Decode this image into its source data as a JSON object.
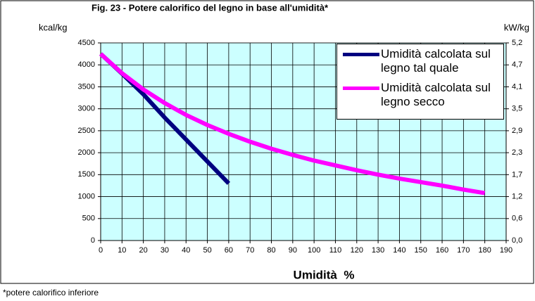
{
  "chart_data": {
    "type": "line",
    "title": "Fig. 23 - Potere calorifico del legno in base all'umidità*",
    "ylabel": "kcal/kg",
    "y2label": "kW/kg",
    "xlabel": "Umidità  %",
    "footnote": "*potere calorifico inferiore",
    "xlim": [
      0,
      190
    ],
    "xticks": [
      0,
      10,
      20,
      30,
      40,
      50,
      60,
      70,
      80,
      90,
      100,
      110,
      120,
      130,
      140,
      150,
      160,
      170,
      180,
      190
    ],
    "ylim": [
      0,
      4500
    ],
    "yticks": [
      0,
      500,
      1000,
      1500,
      2000,
      2500,
      3000,
      3500,
      4000,
      4500
    ],
    "y2lim": [
      0,
      5.233
    ],
    "y2ticks": [
      {
        "value": 0,
        "label": "0,0"
      },
      {
        "value": 0.581,
        "label": "0,6"
      },
      {
        "value": 1.163,
        "label": "1,2"
      },
      {
        "value": 1.744,
        "label": "1,7"
      },
      {
        "value": 2.326,
        "label": "2,3"
      },
      {
        "value": 2.907,
        "label": "2,9"
      },
      {
        "value": 3.488,
        "label": "3,5"
      },
      {
        "value": 4.07,
        "label": "4,1"
      },
      {
        "value": 4.651,
        "label": "4,7"
      },
      {
        "value": 5.233,
        "label": "5,2"
      }
    ],
    "grid": true,
    "background": "#ccffff",
    "legend": "top-right",
    "series": [
      {
        "name": "Umidità calcolata sul legno tal quale",
        "color": "#000080",
        "x": [
          0,
          10,
          20,
          30,
          40,
          50,
          60
        ],
        "values": [
          4250,
          3800,
          3330,
          2800,
          2300,
          1800,
          1300
        ]
      },
      {
        "name": "Umidità calcolata sul legno secco",
        "color": "#ff00ff",
        "x": [
          0,
          10,
          20,
          30,
          40,
          50,
          60,
          70,
          80,
          90,
          100,
          110,
          120,
          130,
          140,
          150,
          160,
          170,
          180
        ],
        "values": [
          4250,
          3810,
          3440,
          3130,
          2860,
          2630,
          2430,
          2250,
          2090,
          1950,
          1820,
          1710,
          1600,
          1500,
          1410,
          1330,
          1250,
          1160,
          1080
        ]
      }
    ]
  }
}
